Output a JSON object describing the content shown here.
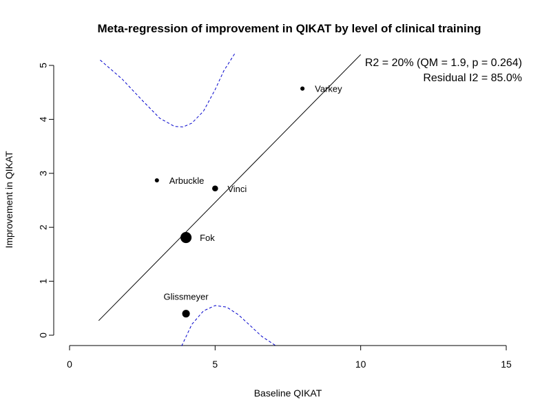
{
  "chart_data": {
    "type": "scatter",
    "title": "Meta-regression of improvement in QIKAT by level of clinical training",
    "xlabel": "Baseline QIKAT",
    "ylabel": "Improvement in QIKAT",
    "xlim": [
      0,
      15
    ],
    "ylim": [
      0,
      5
    ],
    "x_ticks": [
      "0",
      "5",
      "10",
      "15"
    ],
    "y_ticks": [
      "0",
      "1",
      "2",
      "3",
      "4",
      "5"
    ],
    "grid": false,
    "points": [
      {
        "label": "Varkey",
        "x": 8.0,
        "y": 4.57,
        "weight": 1
      },
      {
        "label": "Arbuckle",
        "x": 3.0,
        "y": 2.87,
        "weight": 1
      },
      {
        "label": "Vinci",
        "x": 5.0,
        "y": 2.72,
        "weight": 2
      },
      {
        "label": "Fok",
        "x": 4.0,
        "y": 1.81,
        "weight": 5
      },
      {
        "label": "Glissmeyer",
        "x": 4.0,
        "y": 0.4,
        "weight": 3
      }
    ],
    "regression_line": {
      "x": [
        1.0,
        10.0
      ],
      "y": [
        0.27,
        5.2
      ]
    },
    "ci_lower": {
      "x": [
        3.85,
        4.2,
        4.6,
        5.0,
        5.4,
        5.8,
        6.2,
        6.6,
        7.1
      ],
      "y": [
        -0.2,
        0.2,
        0.45,
        0.55,
        0.52,
        0.38,
        0.18,
        -0.02,
        -0.2
      ]
    },
    "ci_upper": {
      "x": [
        1.05,
        1.8,
        2.5,
        3.1,
        3.6,
        3.9,
        4.2,
        4.6,
        5.0,
        5.3,
        5.7
      ],
      "y": [
        5.1,
        4.75,
        4.35,
        4.02,
        3.87,
        3.86,
        3.93,
        4.15,
        4.55,
        4.9,
        5.24
      ]
    },
    "annotations": {
      "r2": "R2 = 20% (QM = 1.9, p = 0.264)",
      "residual": "Residual I2 = 85.0%"
    },
    "colors": {
      "points": "#000000",
      "regression": "#000000",
      "ci": "#0000cc"
    }
  }
}
